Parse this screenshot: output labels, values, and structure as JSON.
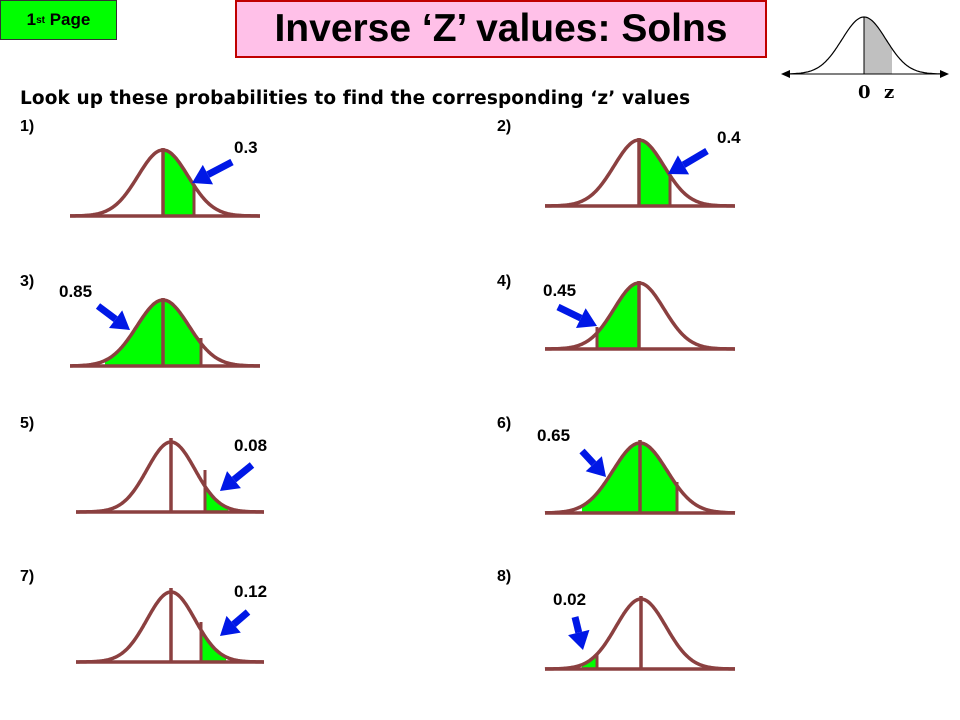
{
  "header": {
    "page_badge": {
      "main": "1",
      "sup": "st",
      "rest": " Page"
    },
    "title": "Inverse ‘Z’ values: Solns",
    "instructions": "Look up these probabilities to find the corresponding ‘z’ values"
  },
  "reference_diagram": {
    "label_zero": "0",
    "label_z": "z"
  },
  "questions": [
    {
      "label": "1)",
      "probability": "0.3"
    },
    {
      "label": "2)",
      "probability": "0.4"
    },
    {
      "label": "3)",
      "probability": "0.85"
    },
    {
      "label": "4)",
      "probability": "0.45"
    },
    {
      "label": "5)",
      "probability": "0.08"
    },
    {
      "label": "6)",
      "probability": "0.65"
    },
    {
      "label": "7)",
      "probability": "0.12"
    },
    {
      "label": "8)",
      "probability": "0.02"
    }
  ],
  "colors": {
    "curve": "#8b4040",
    "fill": "#00ff00",
    "arrow": "#0018e6",
    "reference_fill": "#c0c0c0",
    "title_bg": "#ffc0e8",
    "title_border": "#c00000",
    "badge_bg": "#00ff00"
  }
}
